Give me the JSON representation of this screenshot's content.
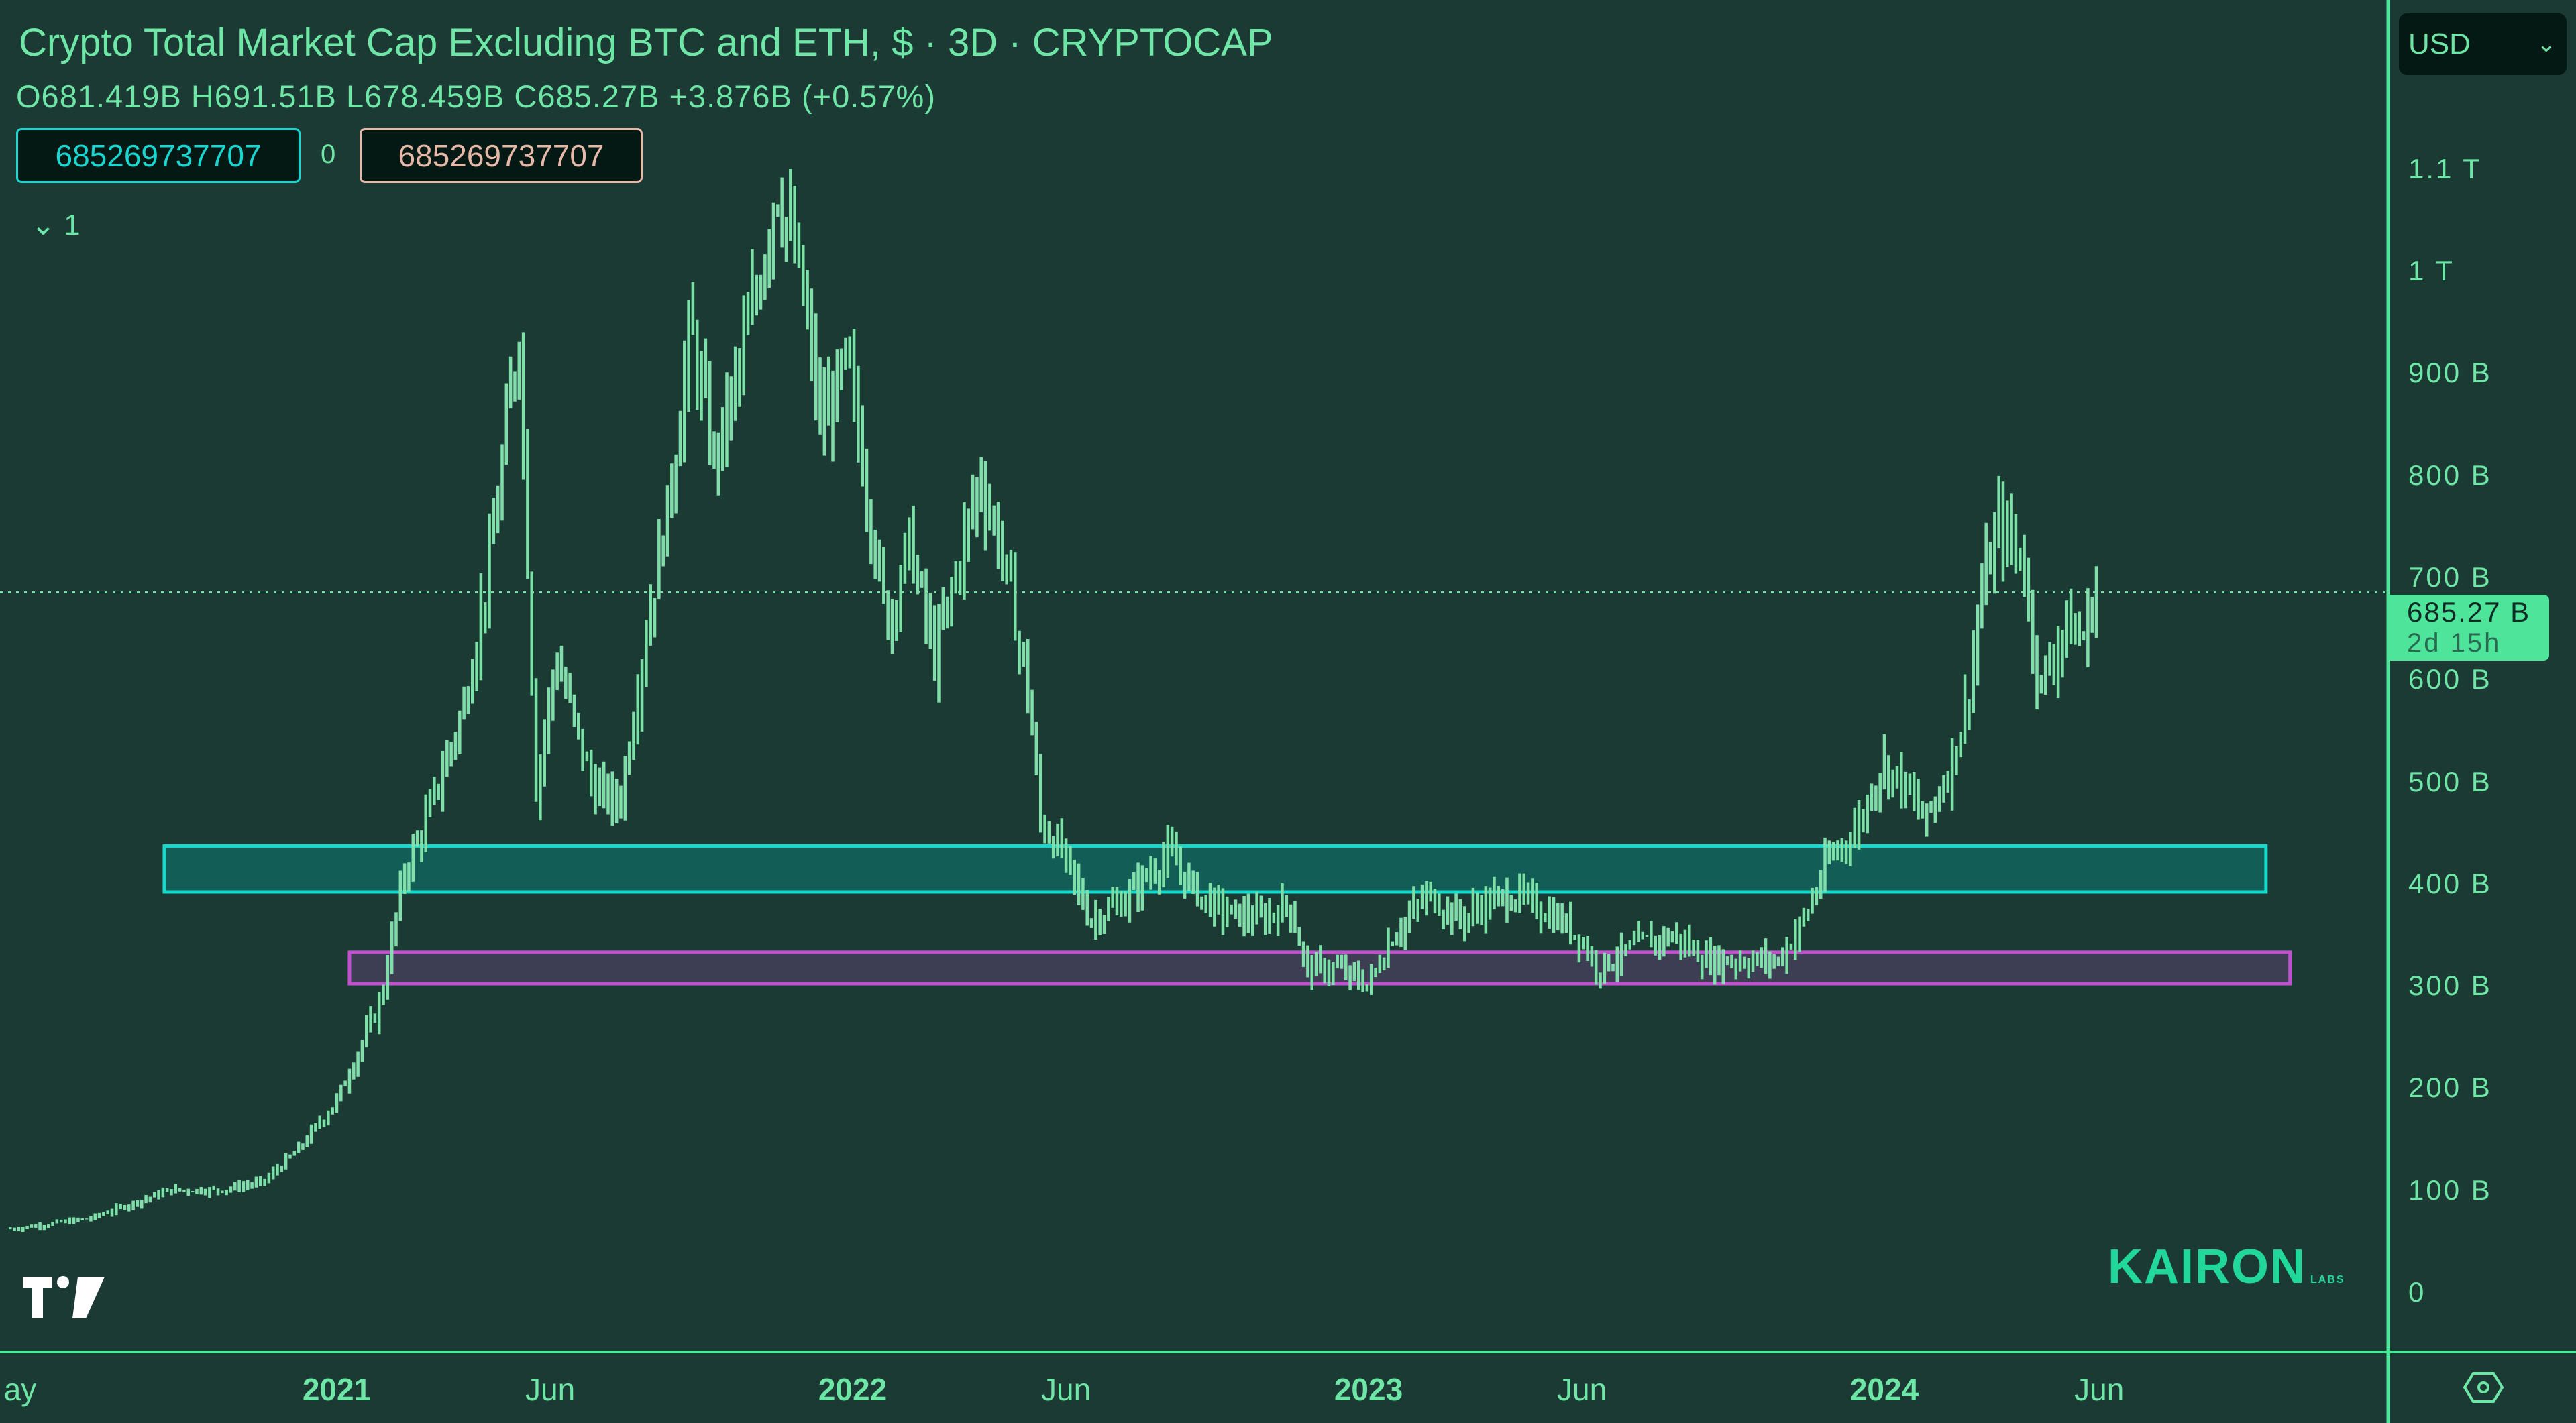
{
  "header": {
    "title": "Crypto Total Market Cap Excluding BTC and ETH, $ · 3D · CRYPTOCAP",
    "ohlc": "O681.419B  H691.51B  L678.459B  C685.27B  +3.876B (+0.57%)",
    "value_box_1": "685269737707",
    "separator_value": "0",
    "value_box_2": "685269737707",
    "indicator_toggle": "1"
  },
  "currency_selector": {
    "selected": "USD"
  },
  "price_label": {
    "price": "685.27 B",
    "countdown": "2d 15h"
  },
  "watermark": {
    "brand": "KAIRON",
    "sub": "LABS"
  },
  "colors": {
    "background": "#1b3a34",
    "candles": "#7ee0a8",
    "axis": "#4ee49a",
    "support_zone_fill": "#10645c",
    "support_zone_border": "#18d8cc",
    "lower_zone_fill": "#433f5a",
    "lower_zone_border": "#c050d0"
  },
  "chart_data": {
    "type": "bar",
    "style": "ohlc-bars",
    "interval": "3D",
    "y_scale": "linear",
    "ylim": [
      0,
      1150
    ],
    "y_unit": "B",
    "y_ticks": [
      "1.1 T",
      "1 T",
      "900 B",
      "800 B",
      "700 B",
      "600 B",
      "500 B",
      "400 B",
      "300 B",
      "200 B",
      "100 B",
      "0"
    ],
    "y_tick_values": [
      1100,
      1000,
      900,
      800,
      700,
      600,
      500,
      400,
      300,
      200,
      100,
      0
    ],
    "x_ticks": [
      {
        "label": "ay",
        "date": "2020-05-01",
        "year": false
      },
      {
        "label": "2021",
        "date": "2021-01-01",
        "year": true
      },
      {
        "label": "Jun",
        "date": "2021-06-01",
        "year": false
      },
      {
        "label": "2022",
        "date": "2022-01-01",
        "year": true
      },
      {
        "label": "Jun",
        "date": "2022-06-01",
        "year": false
      },
      {
        "label": "2023",
        "date": "2023-01-01",
        "year": true
      },
      {
        "label": "Jun",
        "date": "2023-06-01",
        "year": false
      },
      {
        "label": "2024",
        "date": "2024-01-01",
        "year": true
      },
      {
        "label": "Jun",
        "date": "2024-06-01",
        "year": false
      }
    ],
    "last_close": 685.27,
    "closes": [
      [
        "2020-05-15",
        62
      ],
      [
        "2020-07-10",
        72
      ],
      [
        "2020-09-05",
        100
      ],
      [
        "2020-10-10",
        100
      ],
      [
        "2020-11-10",
        108
      ],
      [
        "2020-12-05",
        140
      ],
      [
        "2021-01-01",
        188
      ],
      [
        "2021-02-01",
        285
      ],
      [
        "2021-02-18",
        413
      ],
      [
        "2021-03-05",
        460
      ],
      [
        "2021-04-01",
        574
      ],
      [
        "2021-04-20",
        720
      ],
      [
        "2021-05-10",
        944
      ],
      [
        "2021-05-22",
        494
      ],
      [
        "2021-06-05",
        622
      ],
      [
        "2021-07-01",
        494
      ],
      [
        "2021-07-20",
        478
      ],
      [
        "2021-08-05",
        622
      ],
      [
        "2021-08-25",
        783
      ],
      [
        "2021-09-08",
        944
      ],
      [
        "2021-09-25",
        815
      ],
      [
        "2021-10-05",
        863
      ],
      [
        "2021-10-25",
        976
      ],
      [
        "2021-11-08",
        1088
      ],
      [
        "2021-11-25",
        992
      ],
      [
        "2021-12-10",
        847
      ],
      [
        "2021-12-28",
        911
      ],
      [
        "2022-01-08",
        815
      ],
      [
        "2022-01-25",
        654
      ],
      [
        "2022-02-10",
        735
      ],
      [
        "2022-02-28",
        622
      ],
      [
        "2022-03-12",
        686
      ],
      [
        "2022-04-01",
        799
      ],
      [
        "2022-04-18",
        718
      ],
      [
        "2022-05-05",
        590
      ],
      [
        "2022-05-14",
        461
      ],
      [
        "2022-05-30",
        429
      ],
      [
        "2022-06-18",
        365
      ],
      [
        "2022-07-10",
        381
      ],
      [
        "2022-08-12",
        429
      ],
      [
        "2022-09-03",
        389
      ],
      [
        "2022-09-20",
        373
      ],
      [
        "2022-10-18",
        365
      ],
      [
        "2022-11-06",
        381
      ],
      [
        "2022-11-18",
        317
      ],
      [
        "2022-12-08",
        317
      ],
      [
        "2023-01-01",
        301
      ],
      [
        "2023-01-18",
        349
      ],
      [
        "2023-02-12",
        389
      ],
      [
        "2023-03-08",
        365
      ],
      [
        "2023-03-25",
        381
      ],
      [
        "2023-04-15",
        389
      ],
      [
        "2023-05-15",
        365
      ],
      [
        "2023-05-30",
        349
      ],
      [
        "2023-06-12",
        317
      ],
      [
        "2023-07-12",
        341
      ],
      [
        "2023-08-05",
        349
      ],
      [
        "2023-08-28",
        325
      ],
      [
        "2023-09-20",
        325
      ],
      [
        "2023-10-18",
        325
      ],
      [
        "2023-11-05",
        365
      ],
      [
        "2023-11-22",
        421
      ],
      [
        "2023-12-15",
        461
      ],
      [
        "2023-12-30",
        518
      ],
      [
        "2024-01-12",
        502
      ],
      [
        "2024-01-30",
        461
      ],
      [
        "2024-02-15",
        510
      ],
      [
        "2024-02-28",
        574
      ],
      [
        "2024-03-10",
        686
      ],
      [
        "2024-03-22",
        751
      ],
      [
        "2024-04-08",
        718
      ],
      [
        "2024-04-20",
        590
      ],
      [
        "2024-05-08",
        654
      ],
      [
        "2024-05-20",
        638
      ],
      [
        "2024-05-30",
        685.27
      ]
    ],
    "zones": [
      {
        "name": "support-zone",
        "from": "2020-09-01",
        "to": "2024-09-27",
        "low": 392,
        "high": 437
      },
      {
        "name": "lower-zone",
        "from": "2021-01-10",
        "to": "2024-10-14",
        "low": 302,
        "high": 333
      }
    ]
  }
}
